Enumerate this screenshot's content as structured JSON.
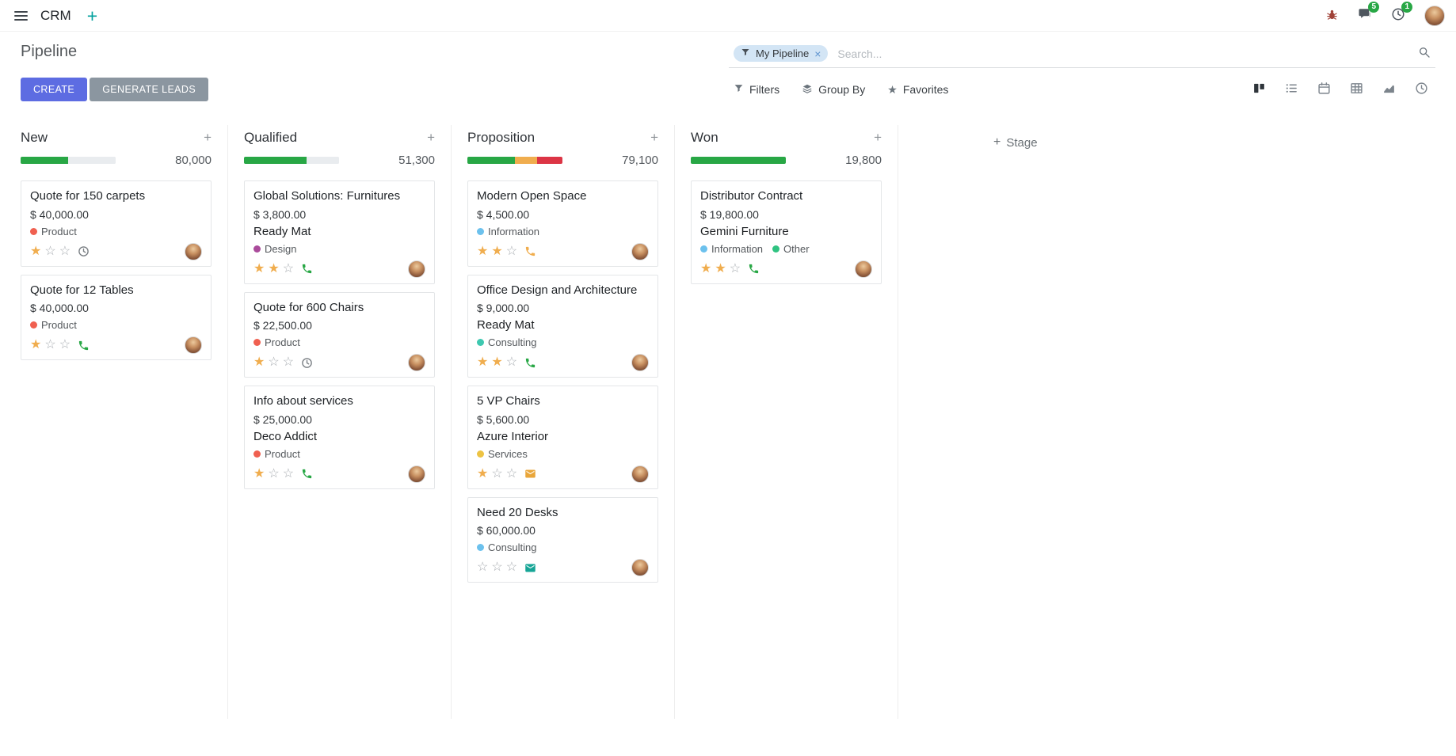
{
  "colors": {
    "primary_button": "#5d6ce2",
    "secondary_button": "#8b96a0",
    "progress_success": "#28a745",
    "progress_warning": "#f0ad4e",
    "progress_danger": "#dc3545",
    "star_filled": "#f0ad4e",
    "facet_background": "#d3e5f5",
    "navbar_plus": "#00a09d"
  },
  "icons": {
    "plus": "+",
    "close": "×",
    "star_filled": "★",
    "star_empty": "☆",
    "hamburger": "menu-bars",
    "search": "magnifier",
    "filter": "funnel",
    "group_by": "layers",
    "favorites": "star",
    "views": [
      "kanban",
      "list",
      "calendar",
      "pivot",
      "graph",
      "activity"
    ]
  },
  "navbar": {
    "app_name": "CRM",
    "messages_badge": "5",
    "activities_badge": "1"
  },
  "control_panel": {
    "title": "Pipeline",
    "create_label": "CREATE",
    "generate_leads_label": "GENERATE LEADS",
    "search_facet": "My Pipeline",
    "search_placeholder": "Search...",
    "filters_label": "Filters",
    "group_by_label": "Group By",
    "favorites_label": "Favorites"
  },
  "kanban": {
    "add_stage_label": "Stage",
    "columns": [
      {
        "name": "New",
        "amount": "80,000",
        "progress": [
          {
            "color": "success",
            "pct": 50
          },
          {
            "color": "empty",
            "pct": 50
          }
        ],
        "cards": [
          {
            "title": "Quote for 150 carpets",
            "amount": "$ 40,000.00",
            "partner": "",
            "tags": [
              {
                "label": "Product",
                "dot": "#f06050"
              }
            ],
            "stars": 1,
            "activity": {
              "type": "clock",
              "color": "#7a7f84"
            }
          },
          {
            "title": "Quote for 12 Tables",
            "amount": "$ 40,000.00",
            "partner": "",
            "tags": [
              {
                "label": "Product",
                "dot": "#f06050"
              }
            ],
            "stars": 1,
            "activity": {
              "type": "phone",
              "color": "#28a745"
            }
          }
        ]
      },
      {
        "name": "Qualified",
        "amount": "51,300",
        "progress": [
          {
            "color": "success",
            "pct": 66
          },
          {
            "color": "empty",
            "pct": 34
          }
        ],
        "cards": [
          {
            "title": "Global Solutions: Furnitures",
            "amount": "$ 3,800.00",
            "partner": "Ready Mat",
            "tags": [
              {
                "label": "Design",
                "dot": "#aa4b9b"
              }
            ],
            "stars": 2,
            "activity": {
              "type": "phone",
              "color": "#28a745"
            }
          },
          {
            "title": "Quote for 600 Chairs",
            "amount": "$ 22,500.00",
            "partner": "",
            "tags": [
              {
                "label": "Product",
                "dot": "#f06050"
              }
            ],
            "stars": 1,
            "activity": {
              "type": "clock",
              "color": "#7a7f84"
            }
          },
          {
            "title": "Info about services",
            "amount": "$ 25,000.00",
            "partner": "Deco Addict",
            "tags": [
              {
                "label": "Product",
                "dot": "#f06050"
              }
            ],
            "stars": 1,
            "activity": {
              "type": "phone",
              "color": "#28a745"
            }
          }
        ]
      },
      {
        "name": "Proposition",
        "amount": "79,100",
        "progress": [
          {
            "color": "success",
            "pct": 50
          },
          {
            "color": "warning",
            "pct": 23
          },
          {
            "color": "danger",
            "pct": 27
          }
        ],
        "cards": [
          {
            "title": "Modern Open Space",
            "amount": "$ 4,500.00",
            "partner": "",
            "tags": [
              {
                "label": "Information",
                "dot": "#6cc1ed"
              }
            ],
            "stars": 2,
            "activity": {
              "type": "phone",
              "color": "#f0ad4e"
            }
          },
          {
            "title": "Office Design and Architecture",
            "amount": "$ 9,000.00",
            "partner": "Ready Mat",
            "tags": [
              {
                "label": "Consulting",
                "dot": "#3ec8b0"
              }
            ],
            "stars": 2,
            "activity": {
              "type": "phone",
              "color": "#28a745"
            }
          },
          {
            "title": "5 VP Chairs",
            "amount": "$ 5,600.00",
            "partner": "Azure Interior",
            "tags": [
              {
                "label": "Services",
                "dot": "#edc343"
              }
            ],
            "stars": 1,
            "activity": {
              "type": "mail",
              "color": "#e9a63a"
            }
          },
          {
            "title": "Need 20 Desks",
            "amount": "$ 60,000.00",
            "partner": "",
            "tags": [
              {
                "label": "Consulting",
                "dot": "#6cc1ed"
              }
            ],
            "stars": 0,
            "activity": {
              "type": "mail",
              "color": "#16a596"
            }
          }
        ]
      },
      {
        "name": "Won",
        "amount": "19,800",
        "progress": [
          {
            "color": "success",
            "pct": 100
          }
        ],
        "cards": [
          {
            "title": "Distributor Contract",
            "amount": "$ 19,800.00",
            "partner": "Gemini Furniture",
            "tags": [
              {
                "label": "Information",
                "dot": "#6cc1ed"
              },
              {
                "label": "Other",
                "dot": "#30c381"
              }
            ],
            "stars": 2,
            "activity": {
              "type": "phone",
              "color": "#28a745"
            }
          }
        ]
      }
    ]
  }
}
